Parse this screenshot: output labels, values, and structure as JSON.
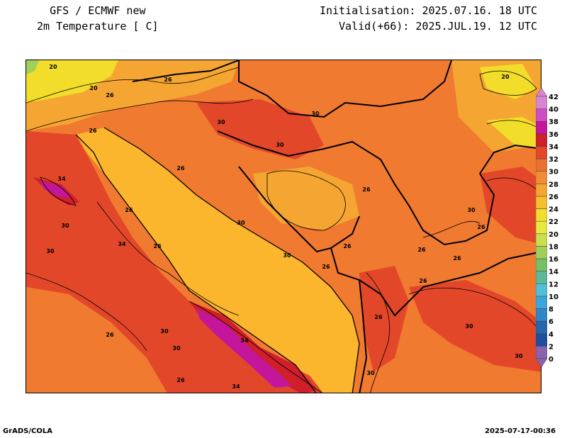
{
  "header": {
    "left_line1": "GFS / ECMWF new",
    "left_line2": "2m Temperature [ C]",
    "right_line1": "Initialisation: 2025.07.16. 18 UTC",
    "right_line2": "Valid(+66): 2025.JUL.19. 12 UTC"
  },
  "footer": {
    "left": "GrADS/COLA",
    "right": "2025-07-17-00:36"
  },
  "colorbar": {
    "levels": [
      "0",
      "2",
      "4",
      "6",
      "8",
      "10",
      "12",
      "14",
      "16",
      "18",
      "20",
      "22",
      "24",
      "26",
      "28",
      "30",
      "32",
      "34",
      "36",
      "38",
      "40",
      "42"
    ],
    "colors": [
      "#8a62b0",
      "#1d4f9c",
      "#2566ad",
      "#2f86c9",
      "#3aa6dd",
      "#4fc0d8",
      "#5cb896",
      "#74c168",
      "#9fd05a",
      "#c8e04c",
      "#e7e93e",
      "#f2dd2a",
      "#f6bf2e",
      "#f5a532",
      "#f18e33",
      "#ec7131",
      "#e3472a",
      "#cf1f2a",
      "#c4169a",
      "#d14bc8",
      "#d986d2"
    ]
  },
  "contour_labels": [
    "20",
    "26",
    "26",
    "20",
    "30",
    "30",
    "26",
    "30",
    "26",
    "20",
    "26",
    "34",
    "26",
    "30",
    "26",
    "30",
    "34",
    "26",
    "30",
    "30",
    "26",
    "26",
    "26",
    "26",
    "30",
    "26",
    "30",
    "30",
    "26",
    "34",
    "30",
    "30",
    "34",
    "26",
    "30",
    "26"
  ]
}
